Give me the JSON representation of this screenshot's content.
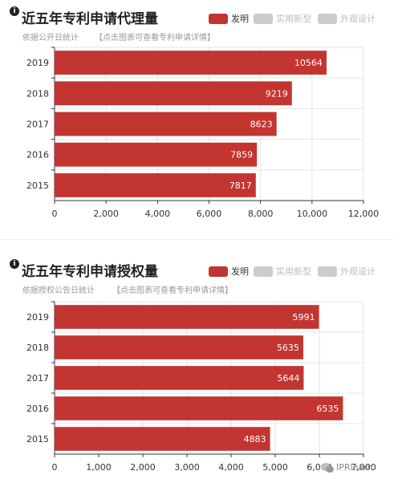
{
  "chart_data": [
    {
      "type": "bar",
      "orientation": "horizontal",
      "title": "近五年专利申请代理量",
      "subtitle": "依据公开日统计",
      "subtitle_link": "【点击图表可查看专利申请详情】",
      "categories": [
        "2019",
        "2018",
        "2017",
        "2016",
        "2015"
      ],
      "series": [
        {
          "name": "发明",
          "color": "#c23531",
          "values": [
            10564,
            9219,
            8623,
            7859,
            7817
          ]
        }
      ],
      "legend": [
        {
          "label": "发明",
          "color": "#c23531",
          "active": true
        },
        {
          "label": "实用新型",
          "color": "#cccccc",
          "active": false
        },
        {
          "label": "外观设计",
          "color": "#cccccc",
          "active": false
        }
      ],
      "xlim": [
        0,
        12000
      ],
      "xticks": [
        "0",
        "2,000",
        "4,000",
        "6,000",
        "8,000",
        "10,000",
        "12,000"
      ],
      "grid": true,
      "legend_position": "top-right"
    },
    {
      "type": "bar",
      "orientation": "horizontal",
      "title": "近五年专利申请授权量",
      "subtitle": "依据授权公告日统计",
      "subtitle_link": "【点击图表可查看专利申请详情】",
      "categories": [
        "2019",
        "2018",
        "2017",
        "2016",
        "2015"
      ],
      "series": [
        {
          "name": "发明",
          "color": "#c23531",
          "values": [
            5991,
            5635,
            5644,
            6535,
            4883
          ]
        }
      ],
      "legend": [
        {
          "label": "发明",
          "color": "#c23531",
          "active": true
        },
        {
          "label": "实用新型",
          "color": "#cccccc",
          "active": false
        },
        {
          "label": "外观设计",
          "color": "#cccccc",
          "active": false
        }
      ],
      "xlim": [
        0,
        7000
      ],
      "xticks": [
        "0",
        "1,000",
        "2,000",
        "3,000",
        "4,000",
        "5,000",
        "6,000",
        "7,000"
      ],
      "grid": true,
      "legend_position": "top-right"
    }
  ],
  "watermark": {
    "text": "IPRlearn"
  },
  "colors": {
    "accent": "#c23531",
    "inactive": "#cccccc"
  },
  "icons": {
    "info": "info-icon",
    "watermark": "wechat-icon"
  }
}
